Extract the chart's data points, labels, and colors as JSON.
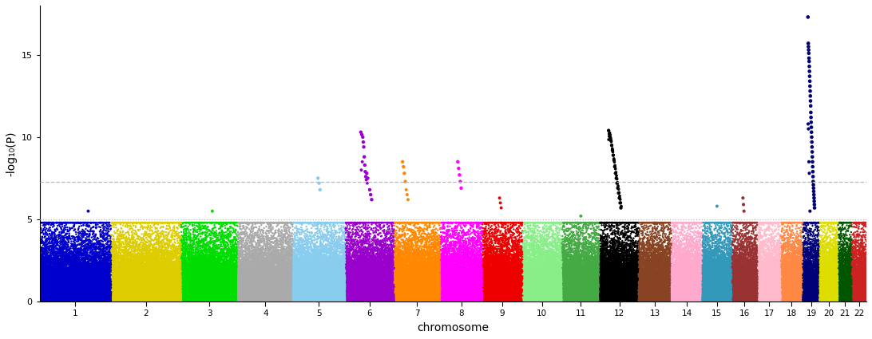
{
  "title": "",
  "xlabel": "chromosome",
  "ylabel": "-log₁₀(P)",
  "ylim": [
    0,
    18
  ],
  "yticks": [
    0,
    5,
    10,
    15
  ],
  "threshold_suggestive": 5.0,
  "threshold_significant": 7.3,
  "chr_colors": [
    "#0000cc",
    "#ddcc00",
    "#00dd00",
    "#aaaaaa",
    "#88ccee",
    "#9900cc",
    "#ff8800",
    "#ff00ff",
    "#ee0000",
    "#88ee88",
    "#44aa44",
    "#000000",
    "#884422",
    "#ffaacc",
    "#3399bb",
    "#993333",
    "#ffbbcc",
    "#ff8844",
    "#000077",
    "#dddd00",
    "#005500",
    "#cc2222"
  ],
  "chr_sizes": [
    250,
    244,
    199,
    192,
    182,
    172,
    160,
    147,
    141,
    136,
    135,
    134,
    115,
    108,
    102,
    90,
    81,
    78,
    59,
    63,
    48,
    52
  ],
  "background_color": "#ffffff",
  "base_point_size": 3.0,
  "peak_point_size": 9.0,
  "snp_density": 80
}
